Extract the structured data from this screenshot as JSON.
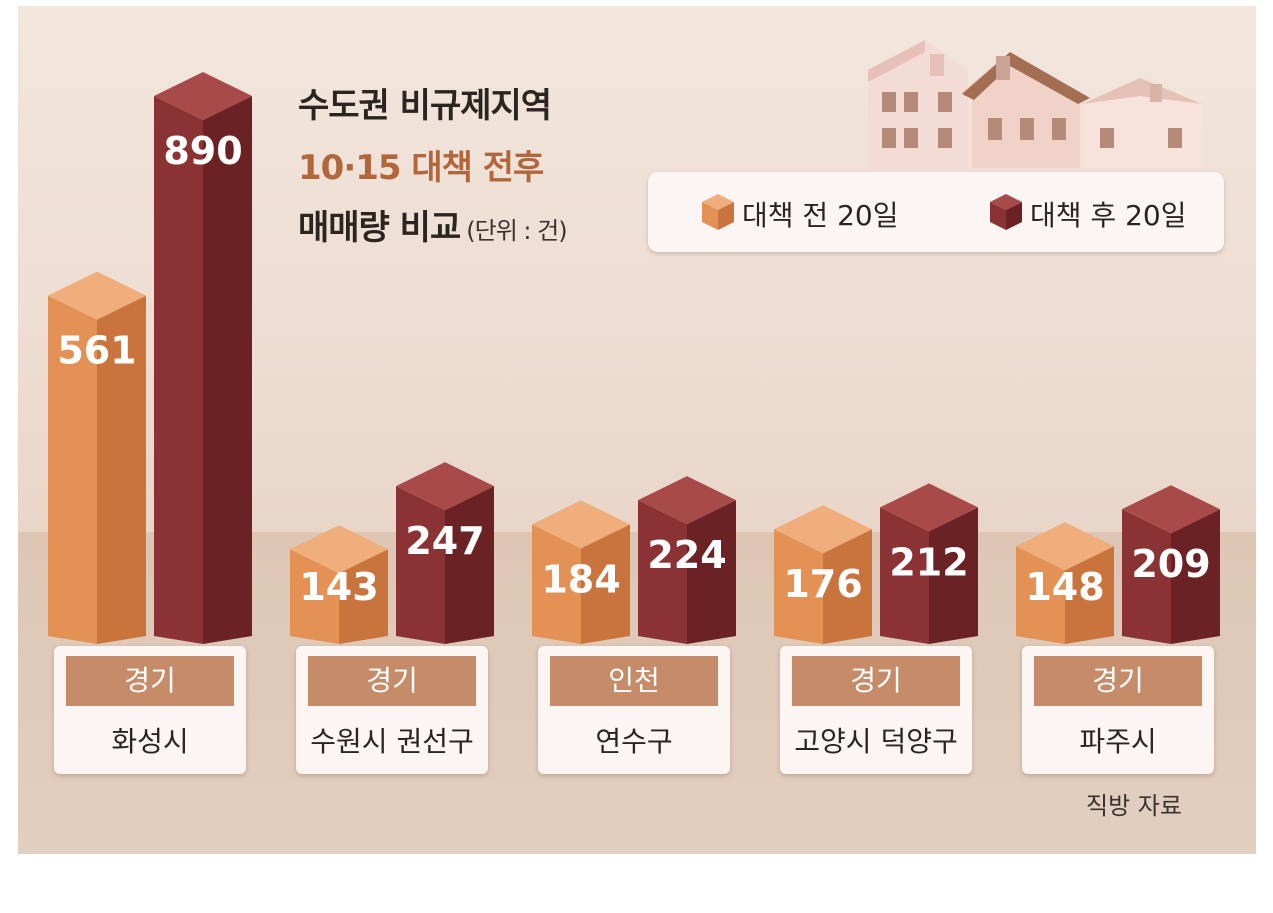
{
  "chart_data": {
    "type": "bar",
    "title": "수도권 비규제지역",
    "subtitle": "10·15 대책 전후",
    "ylabel": "매매량 비교",
    "unit": "(단위 : 건)",
    "categories": [
      {
        "region": "경기",
        "name": "화성시"
      },
      {
        "region": "경기",
        "name": "수원시 권선구"
      },
      {
        "region": "인천",
        "name": "연수구"
      },
      {
        "region": "경기",
        "name": "고양시 덕양구"
      },
      {
        "region": "경기",
        "name": "파주시"
      }
    ],
    "series": [
      {
        "name": "대책 전 20일",
        "values": [
          561,
          143,
          184,
          176,
          148
        ],
        "color": "#e49156"
      },
      {
        "name": "대책 후 20일",
        "values": [
          890,
          247,
          224,
          212,
          209
        ],
        "color": "#8a3234"
      }
    ],
    "legend_placement": "top-right",
    "source": "직방 자료"
  }
}
